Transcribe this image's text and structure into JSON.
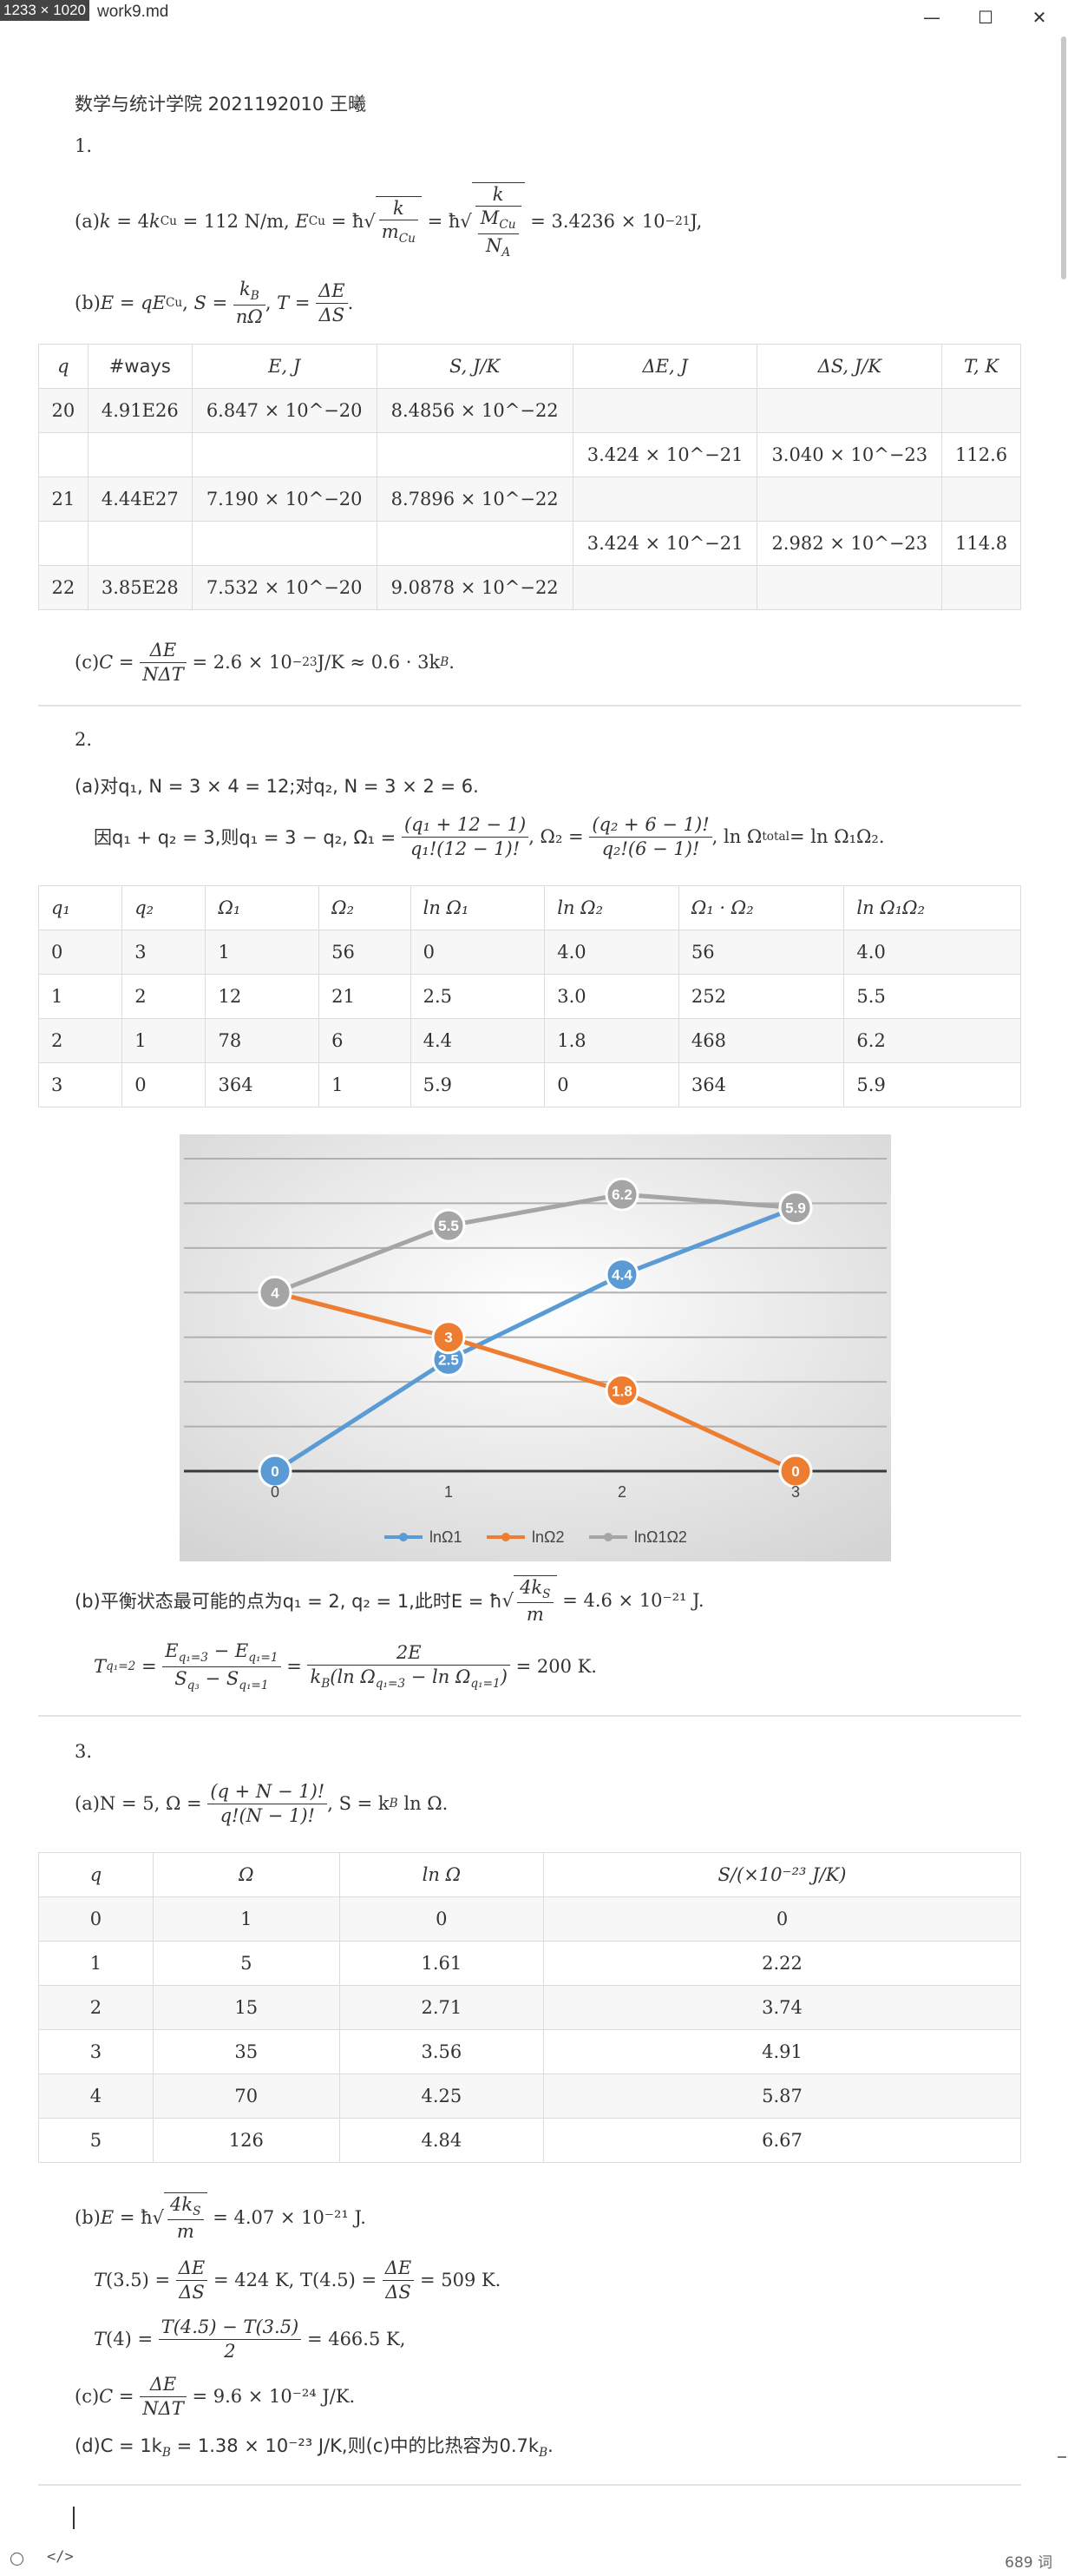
{
  "window": {
    "size_badge": "1233 × 1020",
    "filename": "work9.md",
    "word_count": "689 词"
  },
  "header": "数学与统计学院 2021192010 王曦",
  "s1": {
    "num": "1.",
    "a_lbl": "(a)",
    "b_lbl": "(b)",
    "c_lbl": "(c)",
    "a_result": "= 3.4236 × 10",
    "a_exp": "−21",
    "a_unit": " J,",
    "c_result": "= 2.6 × 10",
    "c_exp": "−23",
    "c_unit": " J/K ≈ 0.6 · 3k",
    "table": {
      "headers": [
        "q",
        "#ways",
        "E, J",
        "S, J/K",
        "ΔE, J",
        "ΔS, J/K",
        "T, K"
      ],
      "rows": [
        [
          "20",
          "4.91E26",
          "6.847 × 10^−20",
          "8.4856 × 10^−22",
          "",
          "",
          ""
        ],
        [
          "",
          "",
          "",
          "",
          "3.424 × 10^−21",
          "3.040 × 10^−23",
          "112.6"
        ],
        [
          "21",
          "4.44E27",
          "7.190 × 10^−20",
          "8.7896 × 10^−22",
          "",
          "",
          ""
        ],
        [
          "",
          "",
          "",
          "",
          "3.424 × 10^−21",
          "2.982 × 10^−23",
          "114.8"
        ],
        [
          "22",
          "3.85E28",
          "7.532 × 10^−20",
          "9.0878 × 10^−22",
          "",
          "",
          ""
        ]
      ]
    }
  },
  "s2": {
    "num": "2.",
    "a_text": "(a)对q₁, N = 3 × 4 = 12;对q₂, N = 3 × 2 = 6.",
    "a_text2_prefix": "因q₁ + q₂ = 3,则q₁ = 3 − q₂, Ω₁ =",
    "b_text_prefix": "(b)平衡状态最可能的点为q₁ = 2, q₂ = 1,此时E = ħ",
    "b_text_suffix": "= 4.6 × 10⁻²¹ J.",
    "t_suffix": "= 200 K.",
    "table": {
      "headers": [
        "q₁",
        "q₂",
        "Ω₁",
        "Ω₂",
        "ln Ω₁",
        "ln Ω₂",
        "Ω₁ · Ω₂",
        "ln Ω₁Ω₂"
      ],
      "rows": [
        [
          "0",
          "3",
          "1",
          "56",
          "0",
          "4.0",
          "56",
          "4.0"
        ],
        [
          "1",
          "2",
          "12",
          "21",
          "2.5",
          "3.0",
          "252",
          "5.5"
        ],
        [
          "2",
          "1",
          "78",
          "6",
          "4.4",
          "1.8",
          "468",
          "6.2"
        ],
        [
          "3",
          "0",
          "364",
          "1",
          "5.9",
          "0",
          "364",
          "5.9"
        ]
      ]
    }
  },
  "chart_data": {
    "type": "line",
    "categories": [
      "0",
      "1",
      "2",
      "3"
    ],
    "series": [
      {
        "name": "lnΩ1",
        "values": [
          0,
          2.5,
          4.4,
          5.9
        ],
        "color": "#5b9bd5"
      },
      {
        "name": "lnΩ2",
        "values": [
          4,
          3,
          1.8,
          0
        ],
        "color": "#ed7d31"
      },
      {
        "name": "lnΩ1Ω2",
        "values": [
          4,
          5.5,
          6.2,
          5.9
        ],
        "color": "#a5a5a5"
      }
    ],
    "ylim": [
      0,
      7
    ],
    "grid": true,
    "legend": "bottom"
  },
  "s3": {
    "num": "3.",
    "a_text": "(a)N = 5, Ω =",
    "a_suffix": ", S = k",
    "table": {
      "headers": [
        "q",
        "Ω",
        "ln Ω",
        "S/(×10⁻²³ J/K)"
      ],
      "rows": [
        [
          "0",
          "1",
          "0",
          "0"
        ],
        [
          "1",
          "5",
          "1.61",
          "2.22"
        ],
        [
          "2",
          "15",
          "2.71",
          "3.74"
        ],
        [
          "3",
          "35",
          "3.56",
          "4.91"
        ],
        [
          "4",
          "70",
          "4.25",
          "5.87"
        ],
        [
          "5",
          "126",
          "4.84",
          "6.67"
        ]
      ]
    },
    "b_result": "= 4.07 × 10⁻²¹ J.",
    "t_line": "= 424 K, T(4.5) =",
    "t_line_end": "= 509 K.",
    "t4_result": "= 466.5 K,",
    "c_result": "= 9.6 × 10⁻²⁴ J/K.",
    "d_text": "(d)C = 1k",
    "d_text2": " = 1.38 × 10⁻²³ J/K,则(c)中的比热容为0.7k"
  }
}
